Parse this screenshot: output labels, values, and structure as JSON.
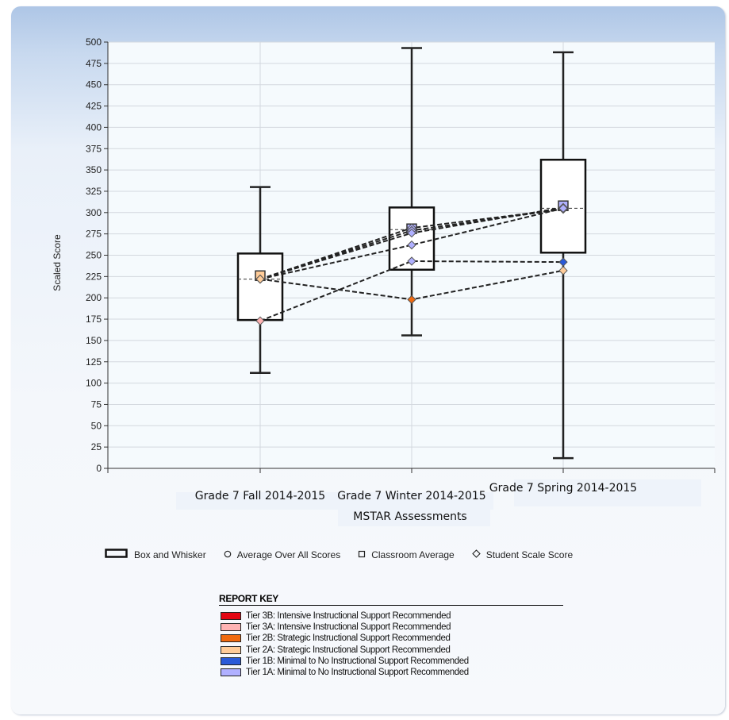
{
  "chart_data": {
    "type": "box",
    "ylabel": "Scaled Score",
    "xlabel": "MSTAR Assessments",
    "ylim": [
      0,
      500
    ],
    "yticks": [
      0,
      25,
      50,
      75,
      100,
      125,
      150,
      175,
      200,
      225,
      250,
      275,
      300,
      325,
      350,
      375,
      400,
      425,
      450,
      475,
      500
    ],
    "categories": [
      "Grade 7 Fall 2014-2015",
      "Grade 7 Winter 2014-2015",
      "Grade 7 Spring 2014-2015"
    ],
    "boxes": [
      {
        "min": 112,
        "q1": 174,
        "median": 222,
        "q3": 252,
        "max": 330
      },
      {
        "min": 156,
        "q1": 233,
        "median": 280,
        "q3": 306,
        "max": 493
      },
      {
        "min": 12,
        "q1": 253,
        "median": 305,
        "q3": 362,
        "max": 488
      }
    ],
    "classroom_average": [
      226,
      281,
      308
    ],
    "student_series": [
      {
        "values": [
          222,
          282,
          304
        ],
        "colors": [
          "#ffcc99",
          "#b0b0ff",
          "#b0b0ff"
        ]
      },
      {
        "values": [
          222,
          279,
          304
        ],
        "colors": [
          "#ffcc99",
          "#b0b0ff",
          "#b0b0ff"
        ]
      },
      {
        "values": [
          222,
          276,
          306
        ],
        "colors": [
          "#ffcc99",
          "#b0b0ff",
          "#b0b0ff"
        ]
      },
      {
        "values": [
          222,
          262,
          305
        ],
        "colors": [
          "#ffcc99",
          "#b0b0ff",
          "#b0b0ff"
        ]
      },
      {
        "values": [
          173,
          243,
          242
        ],
        "colors": [
          "#ffb3b3",
          "#b0b0ff",
          "#2a5ad8"
        ]
      },
      {
        "values": [
          222,
          198,
          232
        ],
        "colors": [
          "#ffcc99",
          "#f06a10",
          "#ffcc99"
        ]
      }
    ],
    "grid": true
  },
  "legend": {
    "items": [
      {
        "symbol": "box",
        "label": "Box and Whisker"
      },
      {
        "symbol": "circle",
        "label": "Average Over All Scores"
      },
      {
        "symbol": "square",
        "label": "Classroom Average"
      },
      {
        "symbol": "diamond",
        "label": "Student Scale Score"
      }
    ]
  },
  "report_key": {
    "title": "REPORT KEY",
    "items": [
      {
        "color": "#e30613",
        "label": "Tier 3B: Intensive Instructional Support Recommended"
      },
      {
        "color": "#ffb3b3",
        "label": "Tier 3A: Intensive Instructional Support Recommended"
      },
      {
        "color": "#f06a10",
        "label": "Tier 2B: Strategic Instructional Support Recommended"
      },
      {
        "color": "#ffcc99",
        "label": "Tier 2A: Strategic Instructional Support Recommended"
      },
      {
        "color": "#2a5ad8",
        "label": "Tier 1B: Minimal to No Instructional Support Recommended"
      },
      {
        "color": "#b0b0ff",
        "label": "Tier 1A: Minimal to No Instructional Support Recommended"
      }
    ]
  }
}
